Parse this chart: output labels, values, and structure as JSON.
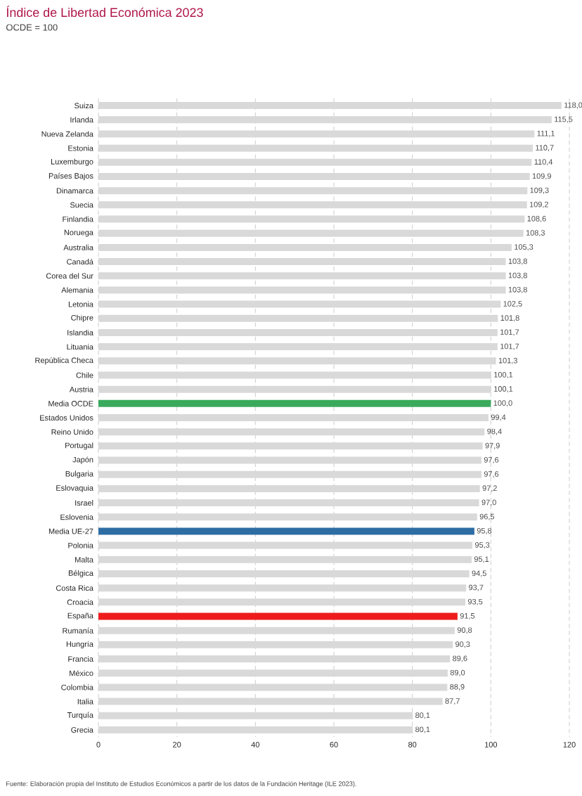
{
  "chart_data": {
    "type": "bar",
    "orientation": "horizontal",
    "title": "Índice de Libertad Económica 2023",
    "subtitle": "OCDE = 100",
    "categories": [
      "Suiza",
      "Irlanda",
      "Nueva Zelanda",
      "Estonia",
      "Luxemburgo",
      "Países Bajos",
      "Dinamarca",
      "Suecia",
      "Finlandia",
      "Noruega",
      "Australia",
      "Canadá",
      "Corea del Sur",
      "Alemania",
      "Letonia",
      "Chipre",
      "Islandia",
      "Lituania",
      "República Checa",
      "Chile",
      "Austria",
      "Media OCDE",
      "Estados Unidos",
      "Reino Unido",
      "Portugal",
      "Japón",
      "Bulgaria",
      "Eslovaquia",
      "Israel",
      "Eslovenia",
      "Media UE-27",
      "Polonia",
      "Malta",
      "Bélgica",
      "Costa Rica",
      "Croacia",
      "España",
      "Rumanía",
      "Hungría",
      "Francia",
      "México",
      "Colombia",
      "Italia",
      "Turquía",
      "Grecia"
    ],
    "values": [
      118.0,
      115.5,
      111.1,
      110.7,
      110.4,
      109.9,
      109.3,
      109.2,
      108.6,
      108.3,
      105.3,
      103.8,
      103.8,
      103.8,
      102.5,
      101.8,
      101.7,
      101.7,
      101.3,
      100.1,
      100.1,
      100.0,
      99.4,
      98.4,
      97.9,
      97.6,
      97.6,
      97.2,
      97.0,
      96.5,
      95.8,
      95.3,
      95.1,
      94.5,
      93.7,
      93.5,
      91.5,
      90.8,
      90.3,
      89.6,
      89.0,
      88.9,
      87.7,
      80.1,
      80.1
    ],
    "value_labels": [
      "118,0",
      "115,5",
      "111,1",
      "110,7",
      "110,4",
      "109,9",
      "109,3",
      "109,2",
      "108,6",
      "108,3",
      "105,3",
      "103,8",
      "103,8",
      "103,8",
      "102,5",
      "101,8",
      "101,7",
      "101,7",
      "101,3",
      "100,1",
      "100,1",
      "100,0",
      "99,4",
      "98,4",
      "97,9",
      "97,6",
      "97,6",
      "97,2",
      "97,0",
      "96,5",
      "95,8",
      "95,3",
      "95,1",
      "94,5",
      "93,7",
      "93,5",
      "91,5",
      "90,8",
      "90,3",
      "89,6",
      "89,0",
      "88,9",
      "87,7",
      "80,1",
      "80,1"
    ],
    "colors": [
      "#d9d9d9",
      "#d9d9d9",
      "#d9d9d9",
      "#d9d9d9",
      "#d9d9d9",
      "#d9d9d9",
      "#d9d9d9",
      "#d9d9d9",
      "#d9d9d9",
      "#d9d9d9",
      "#d9d9d9",
      "#d9d9d9",
      "#d9d9d9",
      "#d9d9d9",
      "#d9d9d9",
      "#d9d9d9",
      "#d9d9d9",
      "#d9d9d9",
      "#d9d9d9",
      "#d9d9d9",
      "#d9d9d9",
      "#3aaa5c",
      "#d9d9d9",
      "#d9d9d9",
      "#d9d9d9",
      "#d9d9d9",
      "#d9d9d9",
      "#d9d9d9",
      "#d9d9d9",
      "#d9d9d9",
      "#2e6da4",
      "#d9d9d9",
      "#d9d9d9",
      "#d9d9d9",
      "#d9d9d9",
      "#d9d9d9",
      "#ee1c1c",
      "#d9d9d9",
      "#d9d9d9",
      "#d9d9d9",
      "#d9d9d9",
      "#d9d9d9",
      "#d9d9d9",
      "#d9d9d9",
      "#d9d9d9"
    ],
    "xlim": [
      0,
      120
    ],
    "xticks": [
      0,
      20,
      40,
      60,
      80,
      100,
      120
    ],
    "grid": "x",
    "annotations": [
      "Fuente: Elaboración propia del Instituto de Estudios Económicos a partir de los datos de la Fundación Heritage (ILE 2023)."
    ]
  }
}
